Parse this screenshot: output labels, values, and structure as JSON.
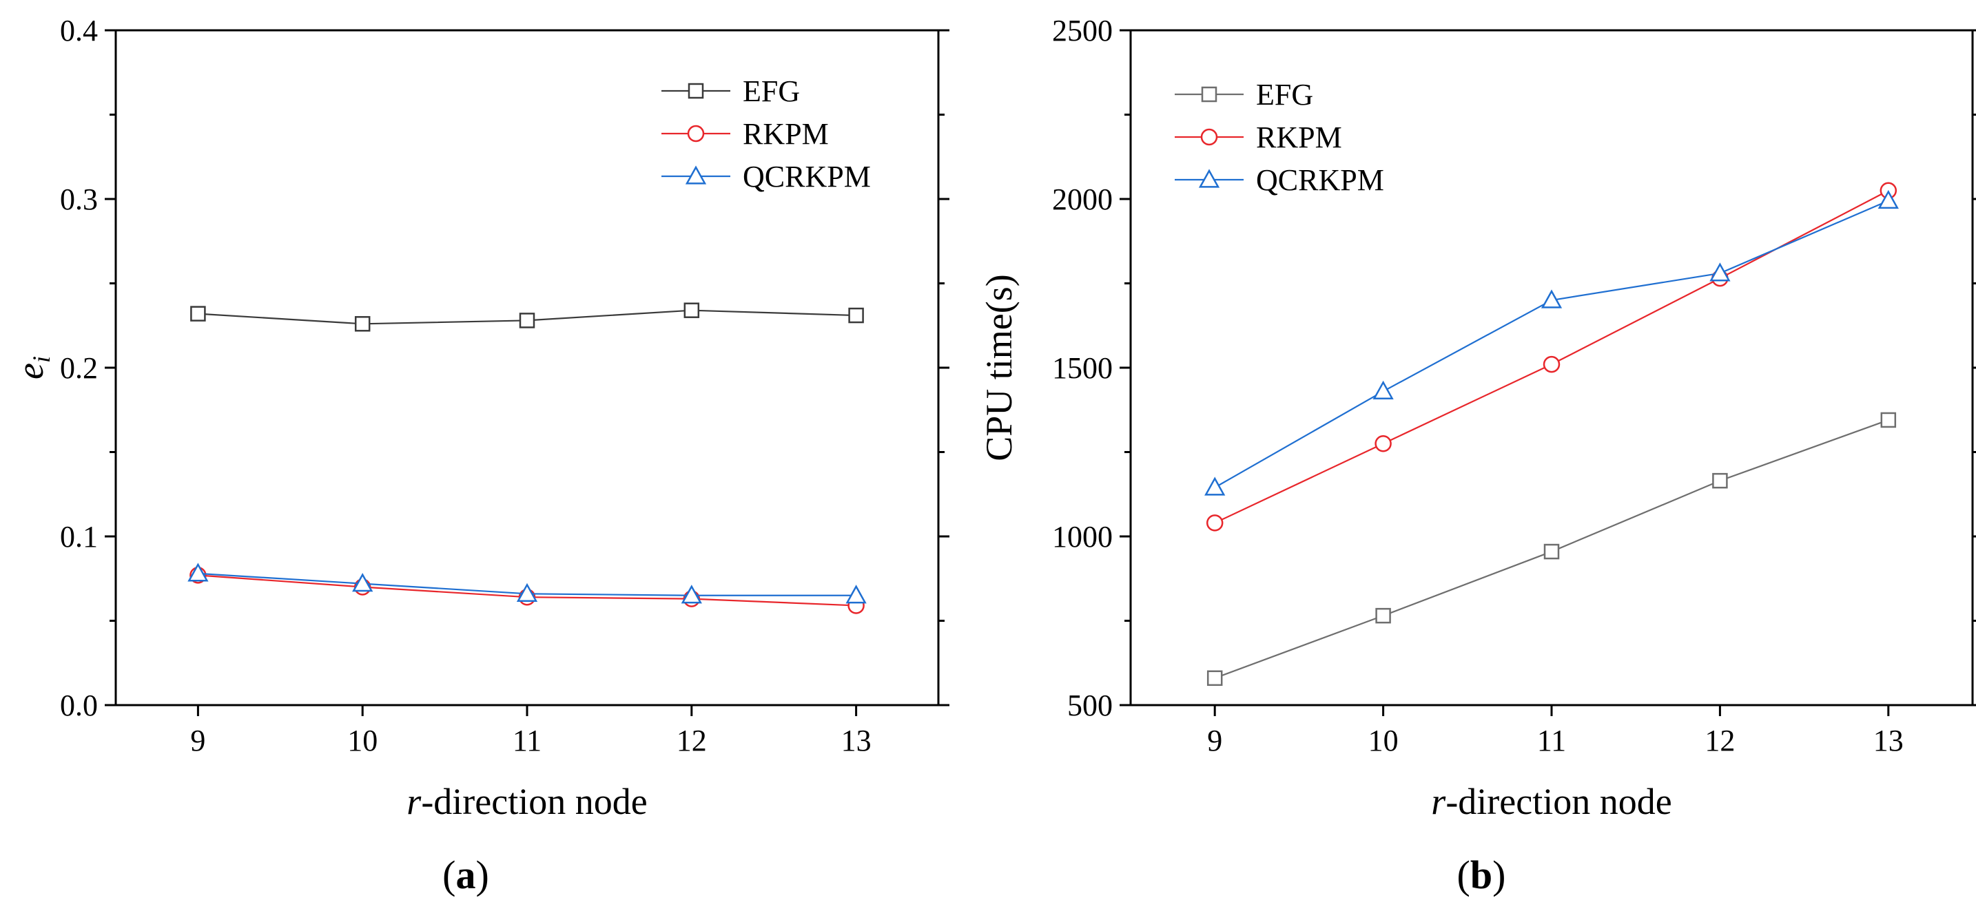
{
  "chart_data": [
    {
      "type": "line",
      "panel_label": "(a)",
      "panel_letter": "a",
      "x": [
        9,
        10,
        11,
        12,
        13
      ],
      "xticks": [
        "9",
        "10",
        "11",
        "12",
        "13"
      ],
      "xlim": [
        8.5,
        13.5
      ],
      "xlabel": "-direction node",
      "xlabel_var": "r",
      "ylabel": "e",
      "ylabel_sub": "i",
      "ylim": [
        0.0,
        0.4
      ],
      "yticks": [
        0.0,
        0.1,
        0.2,
        0.3,
        0.4
      ],
      "yticklabels": [
        "0.0",
        "0.1",
        "0.2",
        "0.3",
        "0.4"
      ],
      "legend_position": "top-right",
      "series": [
        {
          "name": "EFG",
          "marker": "square",
          "color": "#3a3a3a",
          "values": [
            0.232,
            0.226,
            0.228,
            0.234,
            0.231
          ]
        },
        {
          "name": "RKPM",
          "marker": "circle",
          "color": "#e8262b",
          "values": [
            0.077,
            0.07,
            0.064,
            0.063,
            0.059
          ]
        },
        {
          "name": "QCRKPM",
          "marker": "triangle",
          "color": "#1f6fd1",
          "values": [
            0.078,
            0.072,
            0.066,
            0.065,
            0.065
          ]
        }
      ]
    },
    {
      "type": "line",
      "panel_label": "(b)",
      "panel_letter": "b",
      "x": [
        9,
        10,
        11,
        12,
        13
      ],
      "xticks": [
        "9",
        "10",
        "11",
        "12",
        "13"
      ],
      "xlim": [
        8.5,
        13.5
      ],
      "xlabel": "-direction node",
      "xlabel_var": "r",
      "ylabel": "CPU time(s)",
      "ylim": [
        500,
        2500
      ],
      "yticks": [
        500,
        1000,
        1500,
        2000,
        2500
      ],
      "yticklabels": [
        "500",
        "1000",
        "1500",
        "2000",
        "2500"
      ],
      "legend_position": "top-left",
      "series": [
        {
          "name": "EFG",
          "marker": "square",
          "color": "#6e6e6e",
          "values": [
            580,
            765,
            955,
            1165,
            1345
          ]
        },
        {
          "name": "RKPM",
          "marker": "circle",
          "color": "#e8262b",
          "values": [
            1040,
            1275,
            1510,
            1765,
            2025
          ]
        },
        {
          "name": "QCRKPM",
          "marker": "triangle",
          "color": "#1f6fd1",
          "values": [
            1145,
            1430,
            1700,
            1780,
            1995
          ]
        }
      ]
    }
  ]
}
